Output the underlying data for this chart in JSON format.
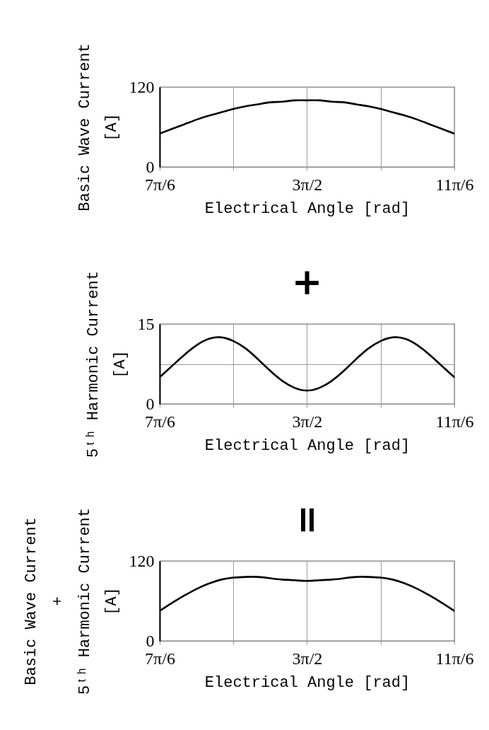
{
  "chart_data": [
    {
      "type": "line",
      "xlabel": "Electrical Angle [rad]",
      "ylabel": "Basic Wave Current\n[A]",
      "x": [
        3.665,
        3.752,
        3.84,
        3.927,
        4.014,
        4.102,
        4.189,
        4.276,
        4.363,
        4.451,
        4.538,
        4.625,
        4.712,
        4.8,
        4.887,
        4.974,
        5.061,
        5.149,
        5.236,
        5.323,
        5.411,
        5.498,
        5.585,
        5.672,
        5.76
      ],
      "series": [
        {
          "color": "#000000",
          "values": [
            50,
            57,
            64,
            71,
            77,
            82,
            87,
            91,
            94,
            97,
            98,
            100,
            100,
            100,
            98,
            97,
            94,
            91,
            87,
            82,
            77,
            71,
            64,
            57,
            50
          ]
        }
      ],
      "xlim": [
        3.665,
        5.76
      ],
      "xticks": [
        {
          "value": 3.665,
          "label": "7π/6"
        },
        {
          "value": 4.189,
          "label": null
        },
        {
          "value": 4.712,
          "label": "3π/2"
        },
        {
          "value": 5.236,
          "label": null
        },
        {
          "value": 5.76,
          "label": "11π/6"
        }
      ],
      "ylim": [
        0,
        120
      ],
      "yticks": [
        0,
        120
      ],
      "grid": true
    },
    {
      "type": "line",
      "xlabel": "Electrical Angle [rad]",
      "ylabel": "5ᵗʰ Harmonic Current\n[A]",
      "annotations": [
        "+"
      ],
      "x": [
        3.665,
        3.752,
        3.84,
        3.927,
        4.014,
        4.102,
        4.189,
        4.276,
        4.363,
        4.451,
        4.538,
        4.625,
        4.712,
        4.8,
        4.887,
        4.974,
        5.061,
        5.149,
        5.236,
        5.323,
        5.411,
        5.498,
        5.585,
        5.672,
        5.76
      ],
      "series": [
        {
          "color": "#000000",
          "values": [
            5.0,
            7.1,
            9.2,
            11.0,
            12.2,
            12.5,
            11.8,
            10.4,
            8.4,
            6.2,
            4.3,
            3.0,
            2.5,
            3.0,
            4.3,
            6.2,
            8.4,
            10.4,
            11.8,
            12.5,
            12.2,
            11.0,
            9.2,
            7.1,
            5.0
          ]
        }
      ],
      "xlim": [
        3.665,
        5.76
      ],
      "xticks": [
        {
          "value": 3.665,
          "label": "7π/6"
        },
        {
          "value": 4.189,
          "label": null
        },
        {
          "value": 4.712,
          "label": "3π/2"
        },
        {
          "value": 5.236,
          "label": null
        },
        {
          "value": 5.76,
          "label": "11π/6"
        }
      ],
      "ylim": [
        0,
        15
      ],
      "yticks": [
        0,
        {
          "value": 7.5,
          "label": null
        },
        15
      ],
      "grid": true
    },
    {
      "type": "line",
      "xlabel": "Electrical Angle [rad]",
      "ylabel": "Basic Wave Current\n+\n5ᵗʰ Harmonic Current\n[A]",
      "annotations": [
        "="
      ],
      "x": [
        3.665,
        3.752,
        3.84,
        3.927,
        4.014,
        4.102,
        4.189,
        4.276,
        4.363,
        4.451,
        4.538,
        4.625,
        4.712,
        4.8,
        4.887,
        4.974,
        5.061,
        5.149,
        5.236,
        5.323,
        5.411,
        5.498,
        5.585,
        5.672,
        5.76
      ],
      "series": [
        {
          "color": "#000000",
          "values": [
            45,
            57,
            68,
            78,
            86,
            92,
            95,
            96,
            96,
            94,
            92,
            91,
            90,
            91,
            92,
            94,
            96,
            96,
            95,
            92,
            86,
            78,
            68,
            57,
            45
          ]
        }
      ],
      "xlim": [
        3.665,
        5.76
      ],
      "xticks": [
        {
          "value": 3.665,
          "label": "7π/6"
        },
        {
          "value": 4.189,
          "label": null
        },
        {
          "value": 4.712,
          "label": "3π/2"
        },
        {
          "value": 5.236,
          "label": null
        },
        {
          "value": 5.76,
          "label": "11π/6"
        }
      ],
      "ylim": [
        0,
        120
      ],
      "yticks": [
        0,
        120
      ],
      "grid": true
    }
  ]
}
